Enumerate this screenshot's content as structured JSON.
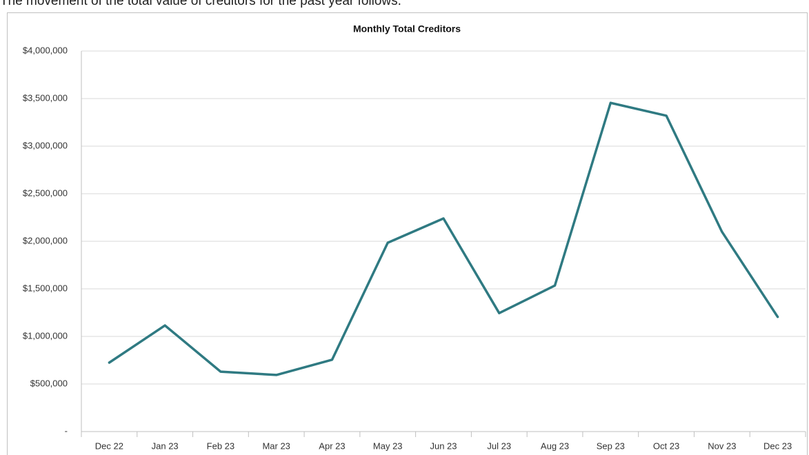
{
  "intro": "The movement of the total value of creditors for the past year follows.",
  "chart_data": {
    "type": "line",
    "title": "Monthly Total Creditors",
    "categories": [
      "Dec 22",
      "Jan 23",
      "Feb 23",
      "Mar 23",
      "Apr 23",
      "May 23",
      "Jun 23",
      "Jul 23",
      "Aug 23",
      "Sep 23",
      "Oct 23",
      "Nov 23",
      "Dec 23"
    ],
    "series": [
      {
        "name": "Total Creditors",
        "color": "#2f7a82",
        "values": [
          725000,
          1115000,
          630000,
          595000,
          755000,
          1985000,
          2240000,
          1245000,
          1535000,
          3455000,
          3320000,
          2100000,
          1205000
        ]
      }
    ],
    "ylim": [
      0,
      4000000
    ],
    "yticks": [
      {
        "value": 0,
        "label": "-"
      },
      {
        "value": 500000,
        "label": "$500,000"
      },
      {
        "value": 1000000,
        "label": "$1,000,000"
      },
      {
        "value": 1500000,
        "label": "$1,500,000"
      },
      {
        "value": 2000000,
        "label": "$2,000,000"
      },
      {
        "value": 2500000,
        "label": "$2,500,000"
      },
      {
        "value": 3000000,
        "label": "$3,000,000"
      },
      {
        "value": 3500000,
        "label": "$3,500,000"
      },
      {
        "value": 4000000,
        "label": "$4,000,000"
      }
    ],
    "grid": true
  }
}
